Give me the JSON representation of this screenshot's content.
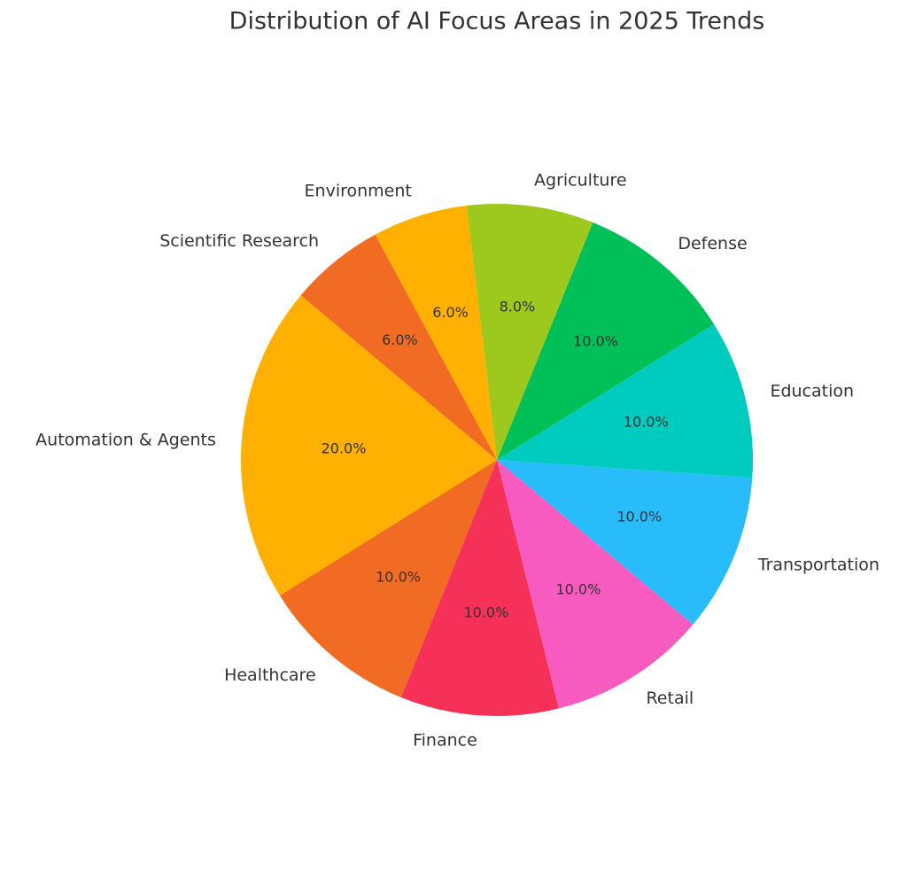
{
  "chart_data": {
    "type": "pie",
    "title": "Distribution of AI Focus Areas in 2025 Trends",
    "categories": [
      "Automation & Agents",
      "Healthcare",
      "Finance",
      "Retail",
      "Transportation",
      "Education",
      "Defense",
      "Agriculture",
      "Environment",
      "Scientific Research"
    ],
    "values": [
      20,
      10,
      10,
      10,
      10,
      10,
      10,
      8,
      6,
      6
    ],
    "value_labels": [
      "20.0%",
      "10.0%",
      "10.0%",
      "10.0%",
      "10.0%",
      "10.0%",
      "10.0%",
      "8.0%",
      "6.0%",
      "6.0%"
    ],
    "colors": [
      "#FFB000",
      "#F26B22",
      "#F53158",
      "#F75BC0",
      "#29BCFB",
      "#00CBBF",
      "#00C057",
      "#9DC91F",
      "#FFB000",
      "#F26B22"
    ]
  }
}
